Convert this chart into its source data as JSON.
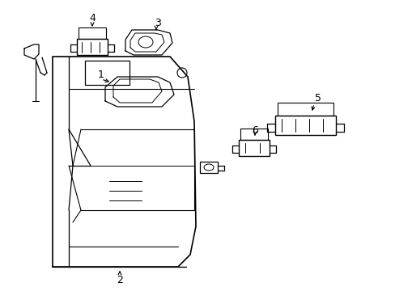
{
  "background": "#ffffff",
  "line_color": "#000000",
  "lw": 1.0,
  "figsize": [
    4.89,
    3.6
  ],
  "dpi": 100,
  "xlim": [
    0,
    489
  ],
  "ylim": [
    0,
    360
  ]
}
